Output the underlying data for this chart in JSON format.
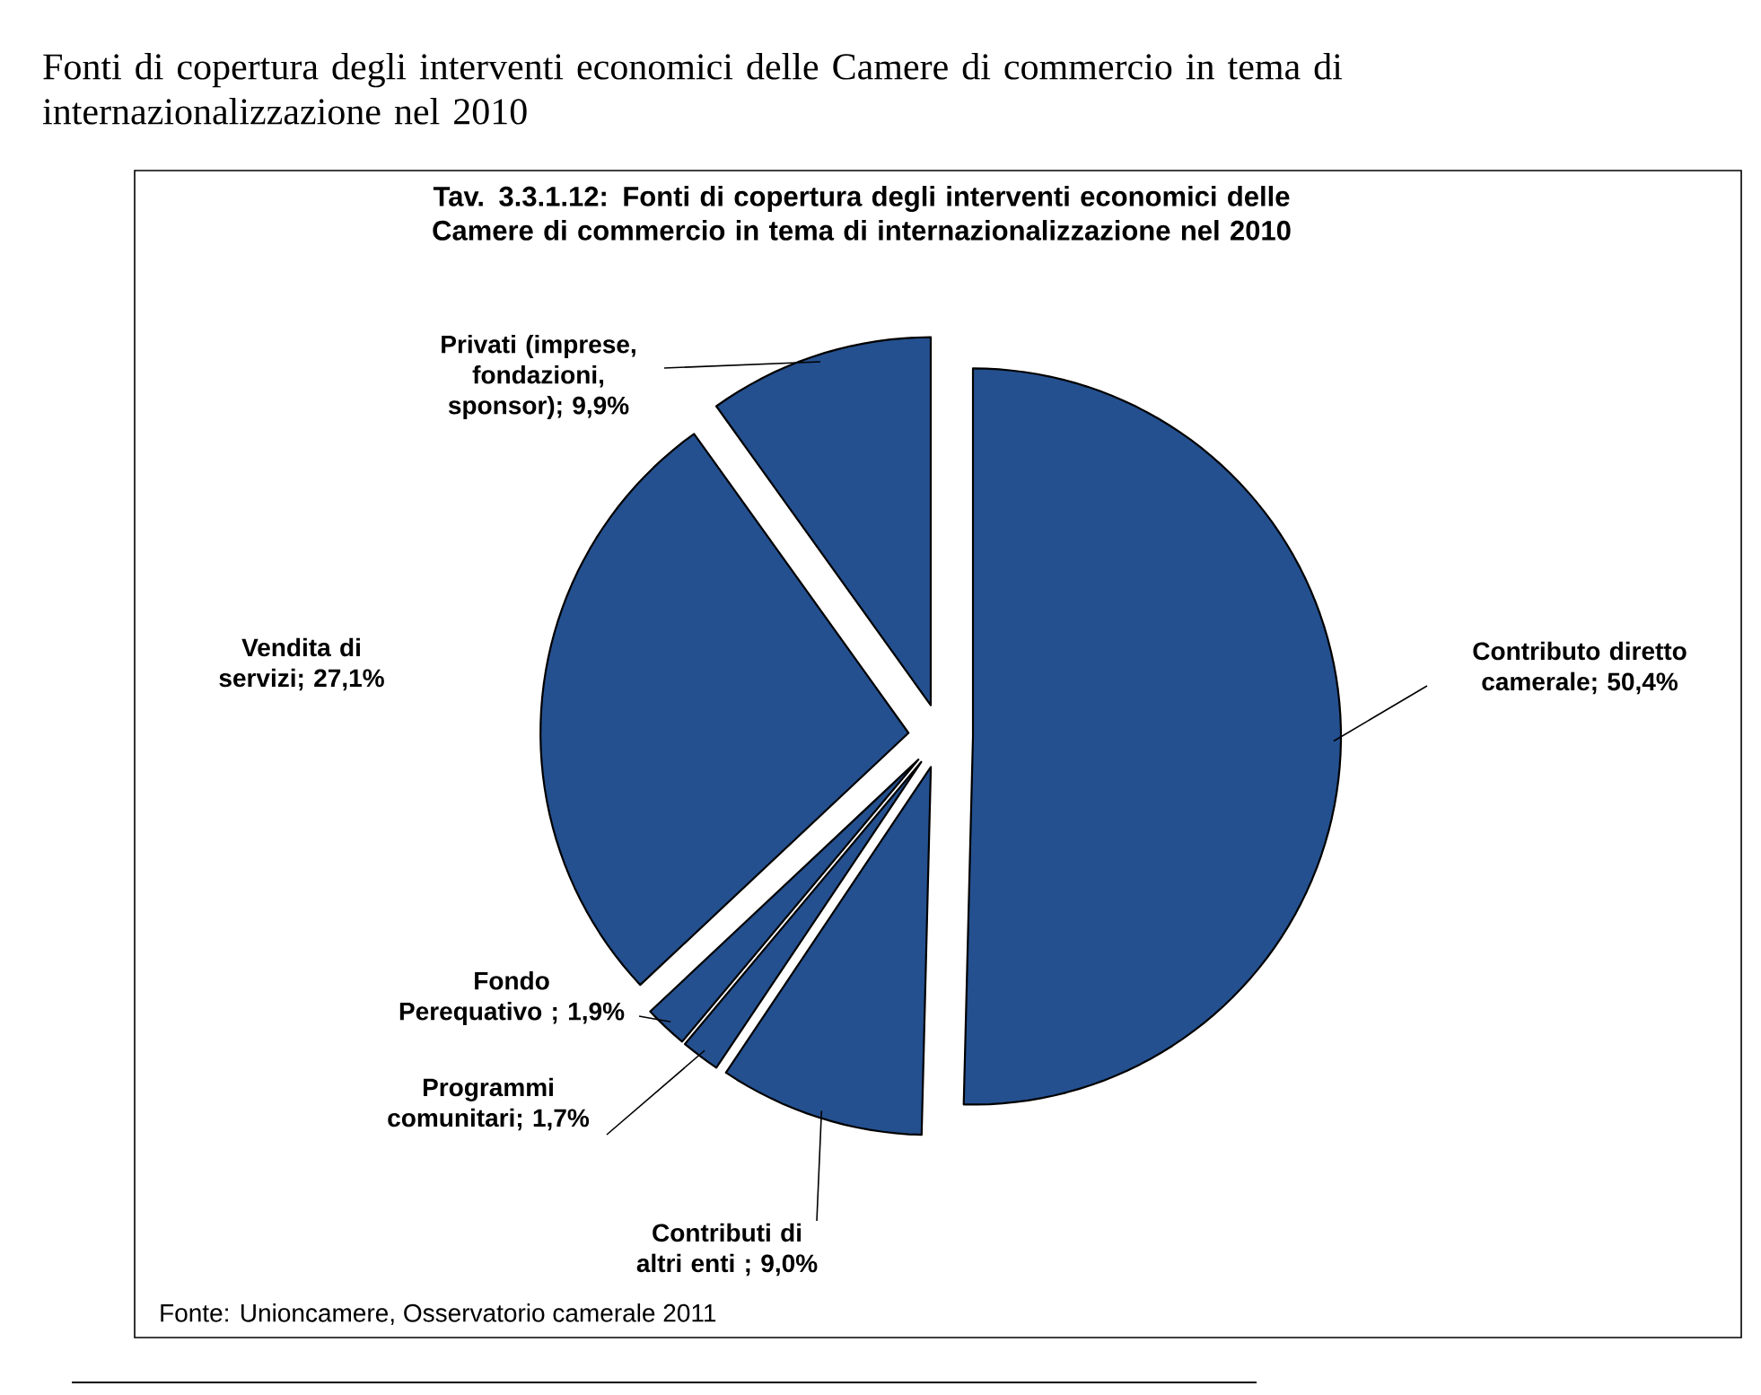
{
  "chart_data": {
    "type": "pie",
    "title": "Fonti di copertura degli interventi economici delle Camere di commercio in tema di internazionalizzazione nel 2010",
    "subtitle": "Tav. 3.3.1.12: Fonti di copertura degli interventi economici delle Camere di commercio in tema di internazionalizzazione nel 2010",
    "categories": [
      "Contributo diretto camerale",
      "Contributi di altri enti",
      "Programmi comunitari",
      "Fondo Perequativo",
      "Vendita di servizi",
      "Privati (imprese, fondazioni, sponsor)"
    ],
    "values": [
      50.4,
      9.0,
      1.7,
      1.9,
      27.1,
      9.9
    ],
    "value_labels": [
      "; 50,4%",
      " ; 9,0%",
      "; 1,7%",
      " ; 1,9%",
      "; 27,1%",
      "; 9,9%"
    ],
    "colors": [
      "#24508f",
      "#24508f",
      "#24508f",
      "#24508f",
      "#24508f",
      "#24508f"
    ],
    "annotations": [
      "Fonte: Unioncamere, Osservatorio camerale 2011"
    ]
  }
}
